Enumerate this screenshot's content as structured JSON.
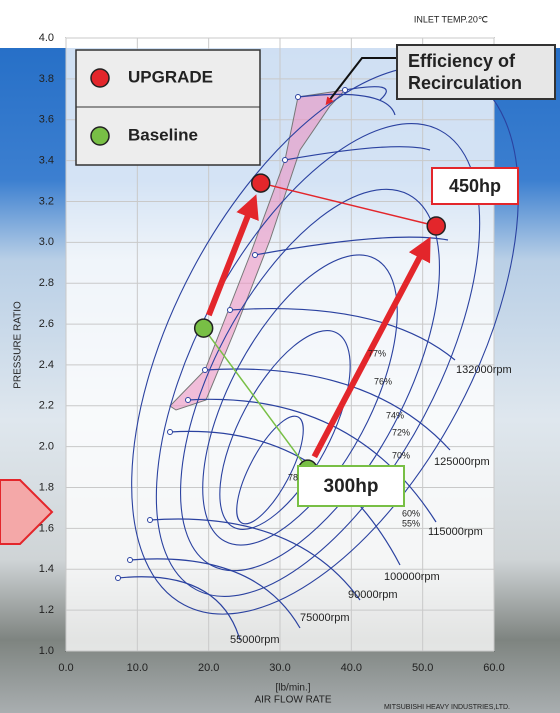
{
  "chart_data": {
    "type": "scatter",
    "subtitle": "INLET TEMP.20℃",
    "x_label": "AIR FLOW RATE",
    "x_unit": "[lb/min.]",
    "y_label": "PRESSURE  RATIO",
    "credit": "MITSUBISHI  HEAVY  INDUSTRIES,LTD.",
    "xlim": [
      0,
      60
    ],
    "xticks": [
      {
        "value": 0,
        "label": "0.0"
      },
      {
        "value": 10,
        "label": "10.0"
      },
      {
        "value": 20,
        "label": "20.0"
      },
      {
        "value": 30,
        "label": "30.0"
      },
      {
        "value": 40,
        "label": "40.0"
      },
      {
        "value": 50,
        "label": "50.0"
      },
      {
        "value": 60,
        "label": "60.0"
      }
    ],
    "ylim": [
      1,
      4
    ],
    "yticks": [
      {
        "value": 1,
        "label": "1.0"
      },
      1.2,
      1.4,
      1.6,
      1.8,
      {
        "value": 2,
        "label": "2.0"
      },
      2.2,
      2.4,
      2.6,
      2.8,
      {
        "value": 3,
        "label": "3.0"
      },
      3.2,
      3.4,
      3.6,
      3.8,
      {
        "value": 4,
        "label": "4.0"
      }
    ],
    "grid": true,
    "series": [
      {
        "name": "UPGRADE",
        "color": "#e3262b",
        "x": [
          27.3,
          51.9
        ],
        "values": [
          3.29,
          3.08
        ]
      },
      {
        "name": "Baseline",
        "color": "#78bf45",
        "x": [
          19.3,
          33.9
        ],
        "values": [
          2.58,
          1.89
        ]
      }
    ],
    "annotations": [
      "Efficiency of Recirculation",
      "450hp",
      "300hp",
      "132000rpm",
      "125000rpm",
      "115000rpm",
      "100000rpm",
      "90000rpm",
      "75000rpm",
      "55000rpm",
      "77%",
      "76%",
      "74%",
      "72%",
      "70%",
      "60%",
      "55%",
      "78"
    ]
  }
}
